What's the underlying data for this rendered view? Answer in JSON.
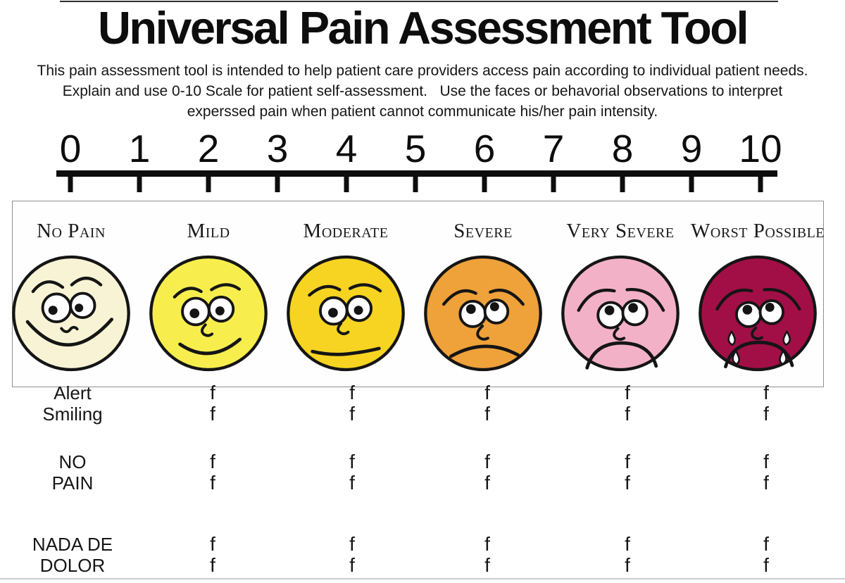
{
  "page": {
    "title": "Universal Pain Assessment Tool"
  },
  "description": {
    "line1": "This pain assessment tool is intended to help patient care providers access pain according to individual patient needs.",
    "line2": "Explain and use 0-10 Scale for patient self-assessment.   Use the faces or behavorial observations to interpret",
    "line3": "experssed pain when patient cannot communicate his/her pain intensity."
  },
  "scale": {
    "min": 0,
    "max": 10,
    "numbers": [
      "0",
      "1",
      "2",
      "3",
      "4",
      "5",
      "6",
      "7",
      "8",
      "9",
      "10"
    ]
  },
  "faces": [
    {
      "label": "No Pain",
      "color": "#f7f3d4",
      "expression": "smiling-wide"
    },
    {
      "label": "Mild",
      "color": "#f7ee4d",
      "expression": "smiling"
    },
    {
      "label": "Moderate",
      "color": "#f6d421",
      "expression": "neutral"
    },
    {
      "label": "Severe",
      "color": "#efa13a",
      "expression": "frowning"
    },
    {
      "label": "Very Severe",
      "color": "#f3b1c7",
      "expression": "frowning-deep"
    },
    {
      "label": "Worst Possible",
      "color": "#a20f46",
      "expression": "crying"
    }
  ],
  "behavior_table": {
    "groups": [
      {
        "rows": [
          {
            "label": "Alert",
            "cells": [
              "f",
              "f",
              "f",
              "f",
              "f"
            ]
          },
          {
            "label": "Smiling",
            "cells": [
              "f",
              "f",
              "f",
              "f",
              "f"
            ]
          }
        ]
      },
      {
        "rows": [
          {
            "label": "NO",
            "cells": [
              "f",
              "f",
              "f",
              "f",
              "f"
            ]
          },
          {
            "label": "PAIN",
            "cells": [
              "f",
              "f",
              "f",
              "f",
              "f"
            ]
          }
        ]
      },
      {
        "rows": [
          {
            "label": "NADA DE",
            "cells": [
              "f",
              "f",
              "f",
              "f",
              "f"
            ]
          },
          {
            "label": "DOLOR",
            "cells": [
              "f",
              "f",
              "f",
              "f",
              "f"
            ]
          }
        ]
      }
    ]
  },
  "colors": {
    "outline": "#151515",
    "scale_line": "#0d0d0d",
    "box_border": "#8f8f8f"
  }
}
